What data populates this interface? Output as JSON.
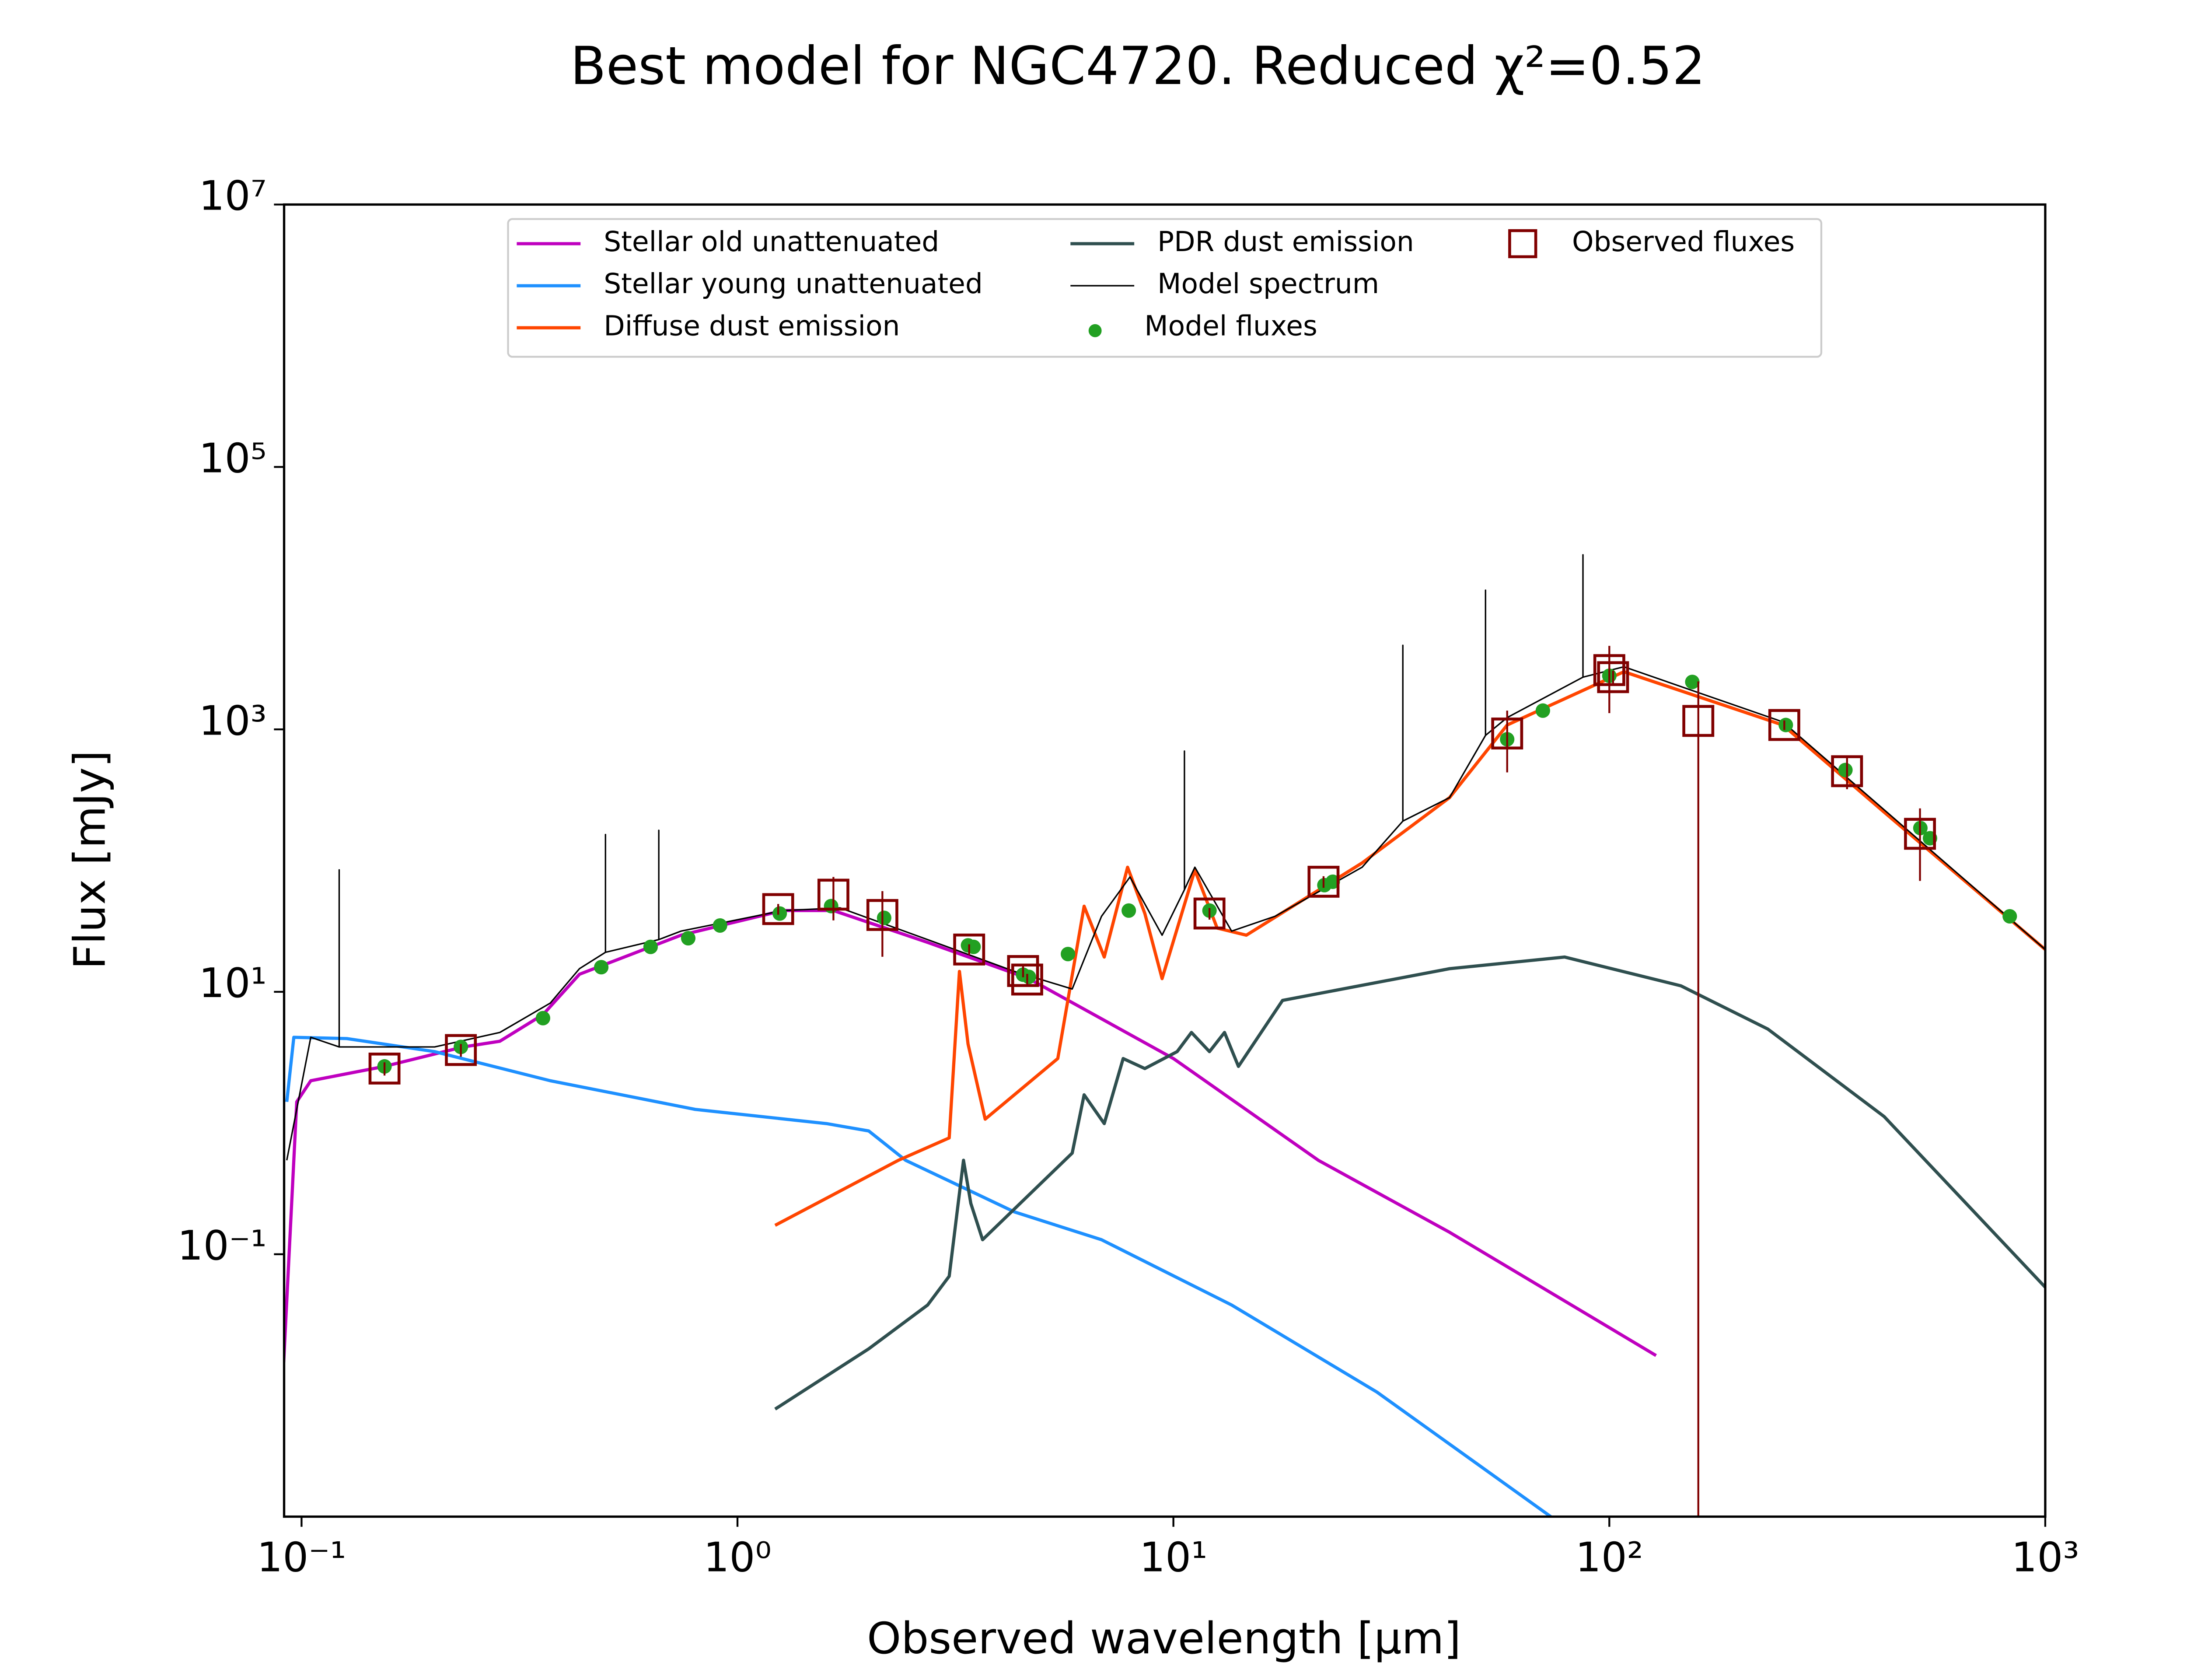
{
  "chart_data": {
    "type": "line",
    "title": "Best model for NGC4720. Reduced χ²=0.52",
    "xlabel": "Observed wavelength [μm]",
    "ylabel": "Flux [mJy]",
    "xscale": "log",
    "yscale": "log",
    "xlim": [
      0.0912,
      1000
    ],
    "ylim": [
      0.001,
      10000000
    ],
    "xticks": [
      {
        "value": 0.1,
        "label": "10⁻¹"
      },
      {
        "value": 1,
        "label": "10⁰"
      },
      {
        "value": 10,
        "label": "10¹"
      },
      {
        "value": 100,
        "label": "10²"
      },
      {
        "value": 1000,
        "label": "10³"
      }
    ],
    "yticks": [
      {
        "value": 0.1,
        "label": "10⁻¹"
      },
      {
        "value": 10,
        "label": "10¹"
      },
      {
        "value": 1000,
        "label": "10³"
      },
      {
        "value": 100000,
        "label": "10⁵"
      },
      {
        "value": 10000000,
        "label": "10⁷"
      }
    ],
    "grid": false,
    "legend": "upper center",
    "series": [
      {
        "name": "Stellar old unattenuated",
        "type": "line",
        "color": "#bf00bf",
        "linewidth": 2.2,
        "x": [
          0.091,
          0.0975,
          0.105,
          0.155,
          0.235,
          0.285,
          0.358,
          0.434,
          0.742,
          1.27,
          1.66,
          2.73,
          4.66,
          10,
          21.5,
          43,
          128
        ],
        "values": [
          0.015,
          1.45,
          2.1,
          2.7,
          3.8,
          4.2,
          6.7,
          13.6,
          27,
          41.6,
          41.6,
          23.8,
          12.6,
          3.1,
          0.52,
          0.147,
          0.0169
        ]
      },
      {
        "name": "Stellar young unattenuated",
        "type": "line",
        "color": "#1e90ff",
        "linewidth": 2.2,
        "x": [
          0.0925,
          0.096,
          0.127,
          0.202,
          0.372,
          0.8,
          1.6,
          2.0,
          2.43,
          4.32,
          6.84,
          13.6,
          29.3,
          73.4
        ],
        "values": [
          1.45,
          4.5,
          4.4,
          3.5,
          2.1,
          1.27,
          0.99,
          0.87,
          0.52,
          0.21,
          0.129,
          0.041,
          0.0089,
          0.001
        ]
      },
      {
        "name": "Diffuse dust emission",
        "type": "line",
        "color": "#ff4500",
        "linewidth": 2.2,
        "x": [
          1.22,
          2.34,
          3.06,
          3.23,
          3.38,
          3.7,
          5.43,
          6.24,
          6.94,
          7.85,
          8.6,
          9.42,
          11.2,
          12.6,
          14.7,
          27.1,
          43,
          58.3,
          108,
          250,
          427,
          1000
        ],
        "values": [
          0.166,
          0.52,
          0.77,
          14.3,
          4.0,
          1.07,
          3.1,
          44.9,
          18.4,
          89,
          39.5,
          12.6,
          84.7,
          30.6,
          27,
          96,
          302,
          1080,
          2750,
          1080,
          234,
          21
        ]
      },
      {
        "name": "PDR dust emission",
        "type": "line",
        "color": "#2f4f4f",
        "linewidth": 2.2,
        "x": [
          1.22,
          2.0,
          2.73,
          3.06,
          3.3,
          3.43,
          3.65,
          5.86,
          6.24,
          6.94,
          7.67,
          8.6,
          10.2,
          11.0,
          12.1,
          13.1,
          14.1,
          17.8,
          43,
          79,
          146,
          231,
          427,
          1000
        ],
        "values": [
          0.0066,
          0.019,
          0.041,
          0.068,
          0.52,
          0.244,
          0.129,
          0.59,
          1.64,
          0.99,
          3.1,
          2.6,
          3.5,
          4.9,
          3.5,
          4.9,
          2.7,
          8.6,
          15,
          18.4,
          11.1,
          5.2,
          1.12,
          0.056
        ]
      },
      {
        "name": "Model spectrum",
        "type": "line",
        "color": "#000000",
        "linewidth": 1,
        "x": [
          0.0925,
          0.105,
          0.122,
          0.122,
          0.122,
          0.202,
          0.285,
          0.372,
          0.434,
          0.498,
          0.498,
          0.498,
          0.66,
          0.66,
          0.66,
          0.742,
          1.27,
          1.72,
          2.73,
          4.32,
          5.86,
          6.84,
          7.95,
          9.42,
          10.6,
          10.6,
          10.6,
          11.2,
          13.6,
          17.1,
          27.1,
          33.6,
          33.6,
          33.6,
          43,
          52,
          52,
          52,
          58.3,
          87,
          87,
          87,
          92.4,
          108,
          250,
          1000
        ],
        "values": [
          0.52,
          4.5,
          3.8,
          85,
          3.8,
          3.8,
          4.9,
          8.2,
          15,
          20,
          158,
          20,
          25,
          170,
          25,
          29,
          41.6,
          43.6,
          25,
          14.3,
          10.5,
          37.6,
          75,
          27,
          60,
          683,
          60,
          89,
          29,
          37.6,
          89,
          200,
          4370,
          200,
          302,
          900,
          11500,
          900,
          1230,
          2500,
          21400,
          2500,
          2630,
          3000,
          1140,
          21
        ]
      },
      {
        "name": "Model fluxes",
        "type": "scatter",
        "marker": "circle",
        "color": "#22a022",
        "x": [
          0.155,
          0.232,
          0.358,
          0.487,
          0.632,
          0.771,
          0.912,
          1.25,
          1.64,
          2.17,
          3.38,
          3.48,
          4.52,
          4.66,
          5.73,
          7.9,
          12.1,
          22.2,
          23.2,
          58.3,
          70.4,
          100,
          155,
          254,
          348,
          517,
          544,
          829
        ],
        "values": [
          2.7,
          3.8,
          6.3,
          15.4,
          22,
          25.6,
          32,
          39.5,
          45,
          36.6,
          22.6,
          22,
          13.5,
          13,
          19.4,
          41.6,
          41.6,
          65,
          69,
          840,
          1390,
          2560,
          2300,
          1080,
          490,
          177,
          148,
          37.6
        ]
      },
      {
        "name": "Observed fluxes",
        "type": "scatter",
        "marker": "square",
        "color": "#800000",
        "x": [
          0.155,
          0.232,
          1.24,
          1.66,
          2.15,
          3.4,
          4.52,
          4.62,
          12.1,
          22.1,
          58.3,
          100,
          102,
          160,
          252,
          351,
          516
        ],
        "values": [
          2.6,
          3.6,
          42.7,
          55,
          38.5,
          21,
          14.4,
          12.4,
          39.5,
          69,
          930,
          2830,
          2500,
          1160,
          1080,
          480,
          160
        ],
        "errors": [
          0.3,
          0.4,
          4,
          20,
          20,
          2,
          1.5,
          1.3,
          4,
          7,
          460,
          1500,
          300,
          1160,
          90,
          130,
          90
        ]
      }
    ]
  }
}
